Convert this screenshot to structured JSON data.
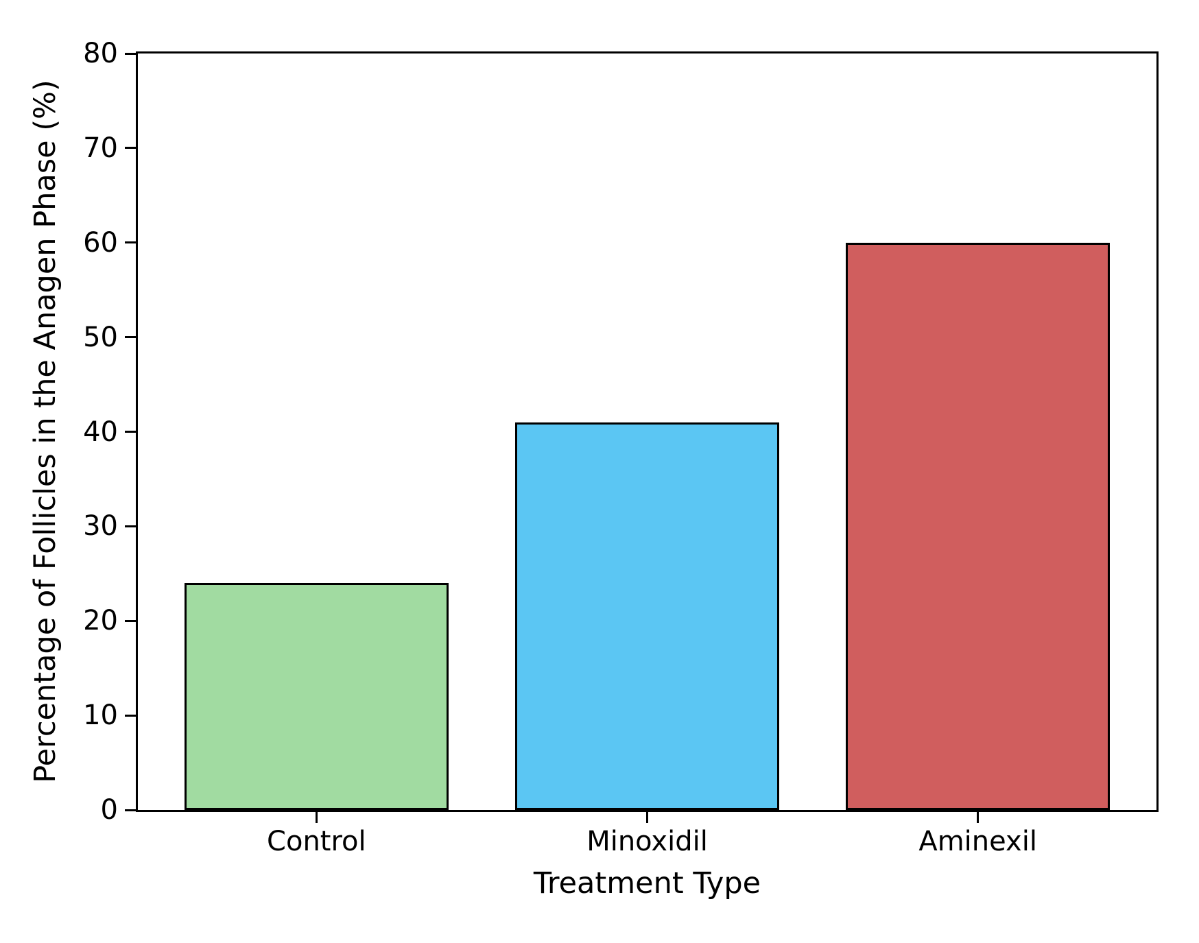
{
  "chart_data": {
    "type": "bar",
    "title": "",
    "xlabel": "Treatment Type",
    "ylabel": "Percentage of Follicles in the Anagen Phase (%)",
    "categories": [
      "Control",
      "Minoxidil",
      "Aminexil"
    ],
    "values": [
      24,
      41,
      60
    ],
    "bar_colors": [
      "#A1DBA1",
      "#5BC6F3",
      "#D05E5E"
    ],
    "bar_edge_color": "#000000",
    "ylim": [
      0,
      80
    ],
    "yticks": [
      0,
      10,
      20,
      30,
      40,
      50,
      60,
      70,
      80
    ],
    "grid": false,
    "legend": "none",
    "background_color": "#ffffff",
    "bar_width_fraction": 0.8,
    "x_margin_units": 0.54
  }
}
